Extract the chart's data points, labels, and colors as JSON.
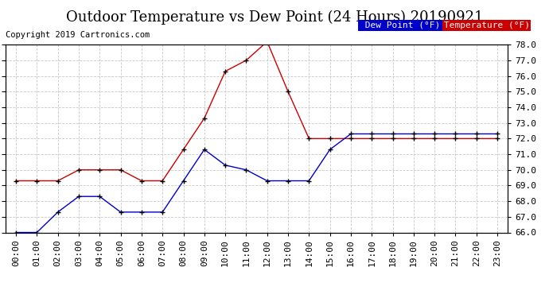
{
  "title": "Outdoor Temperature vs Dew Point (24 Hours) 20190921",
  "copyright": "Copyright 2019 Cartronics.com",
  "hours": [
    "00:00",
    "01:00",
    "02:00",
    "03:00",
    "04:00",
    "05:00",
    "06:00",
    "07:00",
    "08:00",
    "09:00",
    "10:00",
    "11:00",
    "12:00",
    "13:00",
    "14:00",
    "15:00",
    "16:00",
    "17:00",
    "18:00",
    "19:00",
    "20:00",
    "21:00",
    "22:00",
    "23:00"
  ],
  "temperature": [
    69.3,
    69.3,
    69.3,
    70.0,
    70.0,
    70.0,
    69.3,
    69.3,
    71.3,
    73.3,
    76.3,
    77.0,
    78.2,
    75.0,
    72.0,
    72.0,
    72.0,
    72.0,
    72.0,
    72.0,
    72.0,
    72.0,
    72.0,
    72.0
  ],
  "dew_point": [
    66.0,
    66.0,
    67.3,
    68.3,
    68.3,
    67.3,
    67.3,
    67.3,
    69.3,
    71.3,
    70.3,
    70.0,
    69.3,
    69.3,
    69.3,
    71.3,
    72.3,
    72.3,
    72.3,
    72.3,
    72.3,
    72.3,
    72.3,
    72.3
  ],
  "temp_color": "#cc0000",
  "dew_color": "#0000cc",
  "marker_color": "#000000",
  "ylim_min": 66.0,
  "ylim_max": 78.0,
  "yticks": [
    66.0,
    67.0,
    68.0,
    69.0,
    70.0,
    71.0,
    72.0,
    73.0,
    74.0,
    75.0,
    76.0,
    77.0,
    78.0
  ],
  "bg_color": "#ffffff",
  "grid_color": "#c8c8c8",
  "legend_dew_bg": "#0000cc",
  "legend_temp_bg": "#cc0000",
  "legend_text_color": "#ffffff",
  "title_fontsize": 13,
  "copyright_fontsize": 7.5,
  "tick_fontsize": 8,
  "legend_fontsize": 8
}
